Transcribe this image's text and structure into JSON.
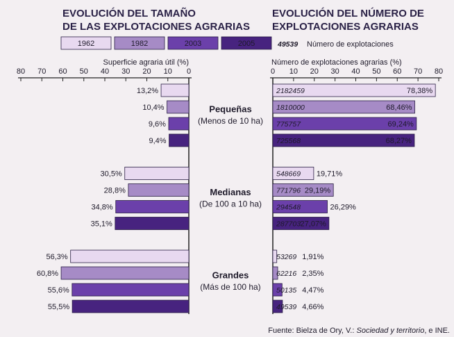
{
  "legend_note": {
    "sample": 49539,
    "label": "Número de explotaciones"
  },
  "source": {
    "prefix": "Fuente: Bielza de Ory, V.: ",
    "title": "Sociedad y territorio",
    "suffix": ", e INE."
  },
  "chart_data": [
    {
      "type": "bar",
      "orientation": "horizontal",
      "title": [
        "EVOLUCIÓN DEL TAMAÑO",
        "DE LAS EXPLOTACIONES AGRARIAS"
      ],
      "x_label": "Superficie agraria útil (%)",
      "categories": [
        "Pequeñas",
        "Medianas",
        "Grandes"
      ],
      "category_notes": [
        "(Menos de 10 ha)",
        "(De 100 a 10 ha)",
        "(Más de 100 ha)"
      ],
      "xlim": [
        80,
        0
      ],
      "xticks": [
        80,
        70,
        60,
        50,
        40,
        30,
        20,
        10,
        0
      ],
      "series": [
        {
          "name": "1962",
          "color": "#e8d9f0",
          "values": [
            13.2,
            30.5,
            56.3
          ],
          "value_labels": [
            "13,2%",
            "30,5%",
            "56,3%"
          ]
        },
        {
          "name": "1982",
          "color": "#a68bc6",
          "values": [
            10.4,
            28.8,
            60.8
          ],
          "value_labels": [
            "10,4%",
            "28,8%",
            "60,8%"
          ]
        },
        {
          "name": "2003",
          "color": "#6b40aa",
          "values": [
            9.6,
            34.8,
            55.6
          ],
          "value_labels": [
            "9,6%",
            "34,8%",
            "55,6%"
          ]
        },
        {
          "name": "2005",
          "color": "#47237f",
          "values": [
            9.4,
            35.1,
            55.5
          ],
          "value_labels": [
            "9,4%",
            "35,1%",
            "55,5%"
          ]
        }
      ]
    },
    {
      "type": "bar",
      "orientation": "horizontal",
      "title": [
        "EVOLUCIÓN DEL NÚMERO DE",
        "EXPLOTACIONES AGRARIAS"
      ],
      "x_label": "Número de explotaciones agrarias (%)",
      "xlim": [
        0,
        80
      ],
      "xticks": [
        0,
        10,
        20,
        30,
        40,
        50,
        60,
        70,
        80
      ],
      "series": [
        {
          "color": "#e8d9f0",
          "values": [
            78.38,
            19.71,
            1.91
          ],
          "value_labels": [
            "78,38%",
            "19,71%",
            "1,91%"
          ],
          "counts": [
            2182459,
            548669,
            53269
          ]
        },
        {
          "color": "#a68bc6",
          "values": [
            68.46,
            29.19,
            2.35
          ],
          "value_labels": [
            "68,46%",
            "29,19%",
            "2,35%"
          ],
          "counts": [
            1810000,
            771796,
            62216
          ]
        },
        {
          "color": "#6b40aa",
          "values": [
            69.24,
            26.29,
            4.47
          ],
          "value_labels": [
            "69,24%",
            "26,29%",
            "4,47%"
          ],
          "counts": [
            775757,
            294548,
            50135
          ]
        },
        {
          "color": "#47237f",
          "values": [
            68.27,
            27.07,
            4.66
          ],
          "value_labels": [
            "68,27%",
            "27,07%",
            "4,66%"
          ],
          "counts": [
            725568,
            287703,
            49539
          ]
        }
      ]
    }
  ]
}
